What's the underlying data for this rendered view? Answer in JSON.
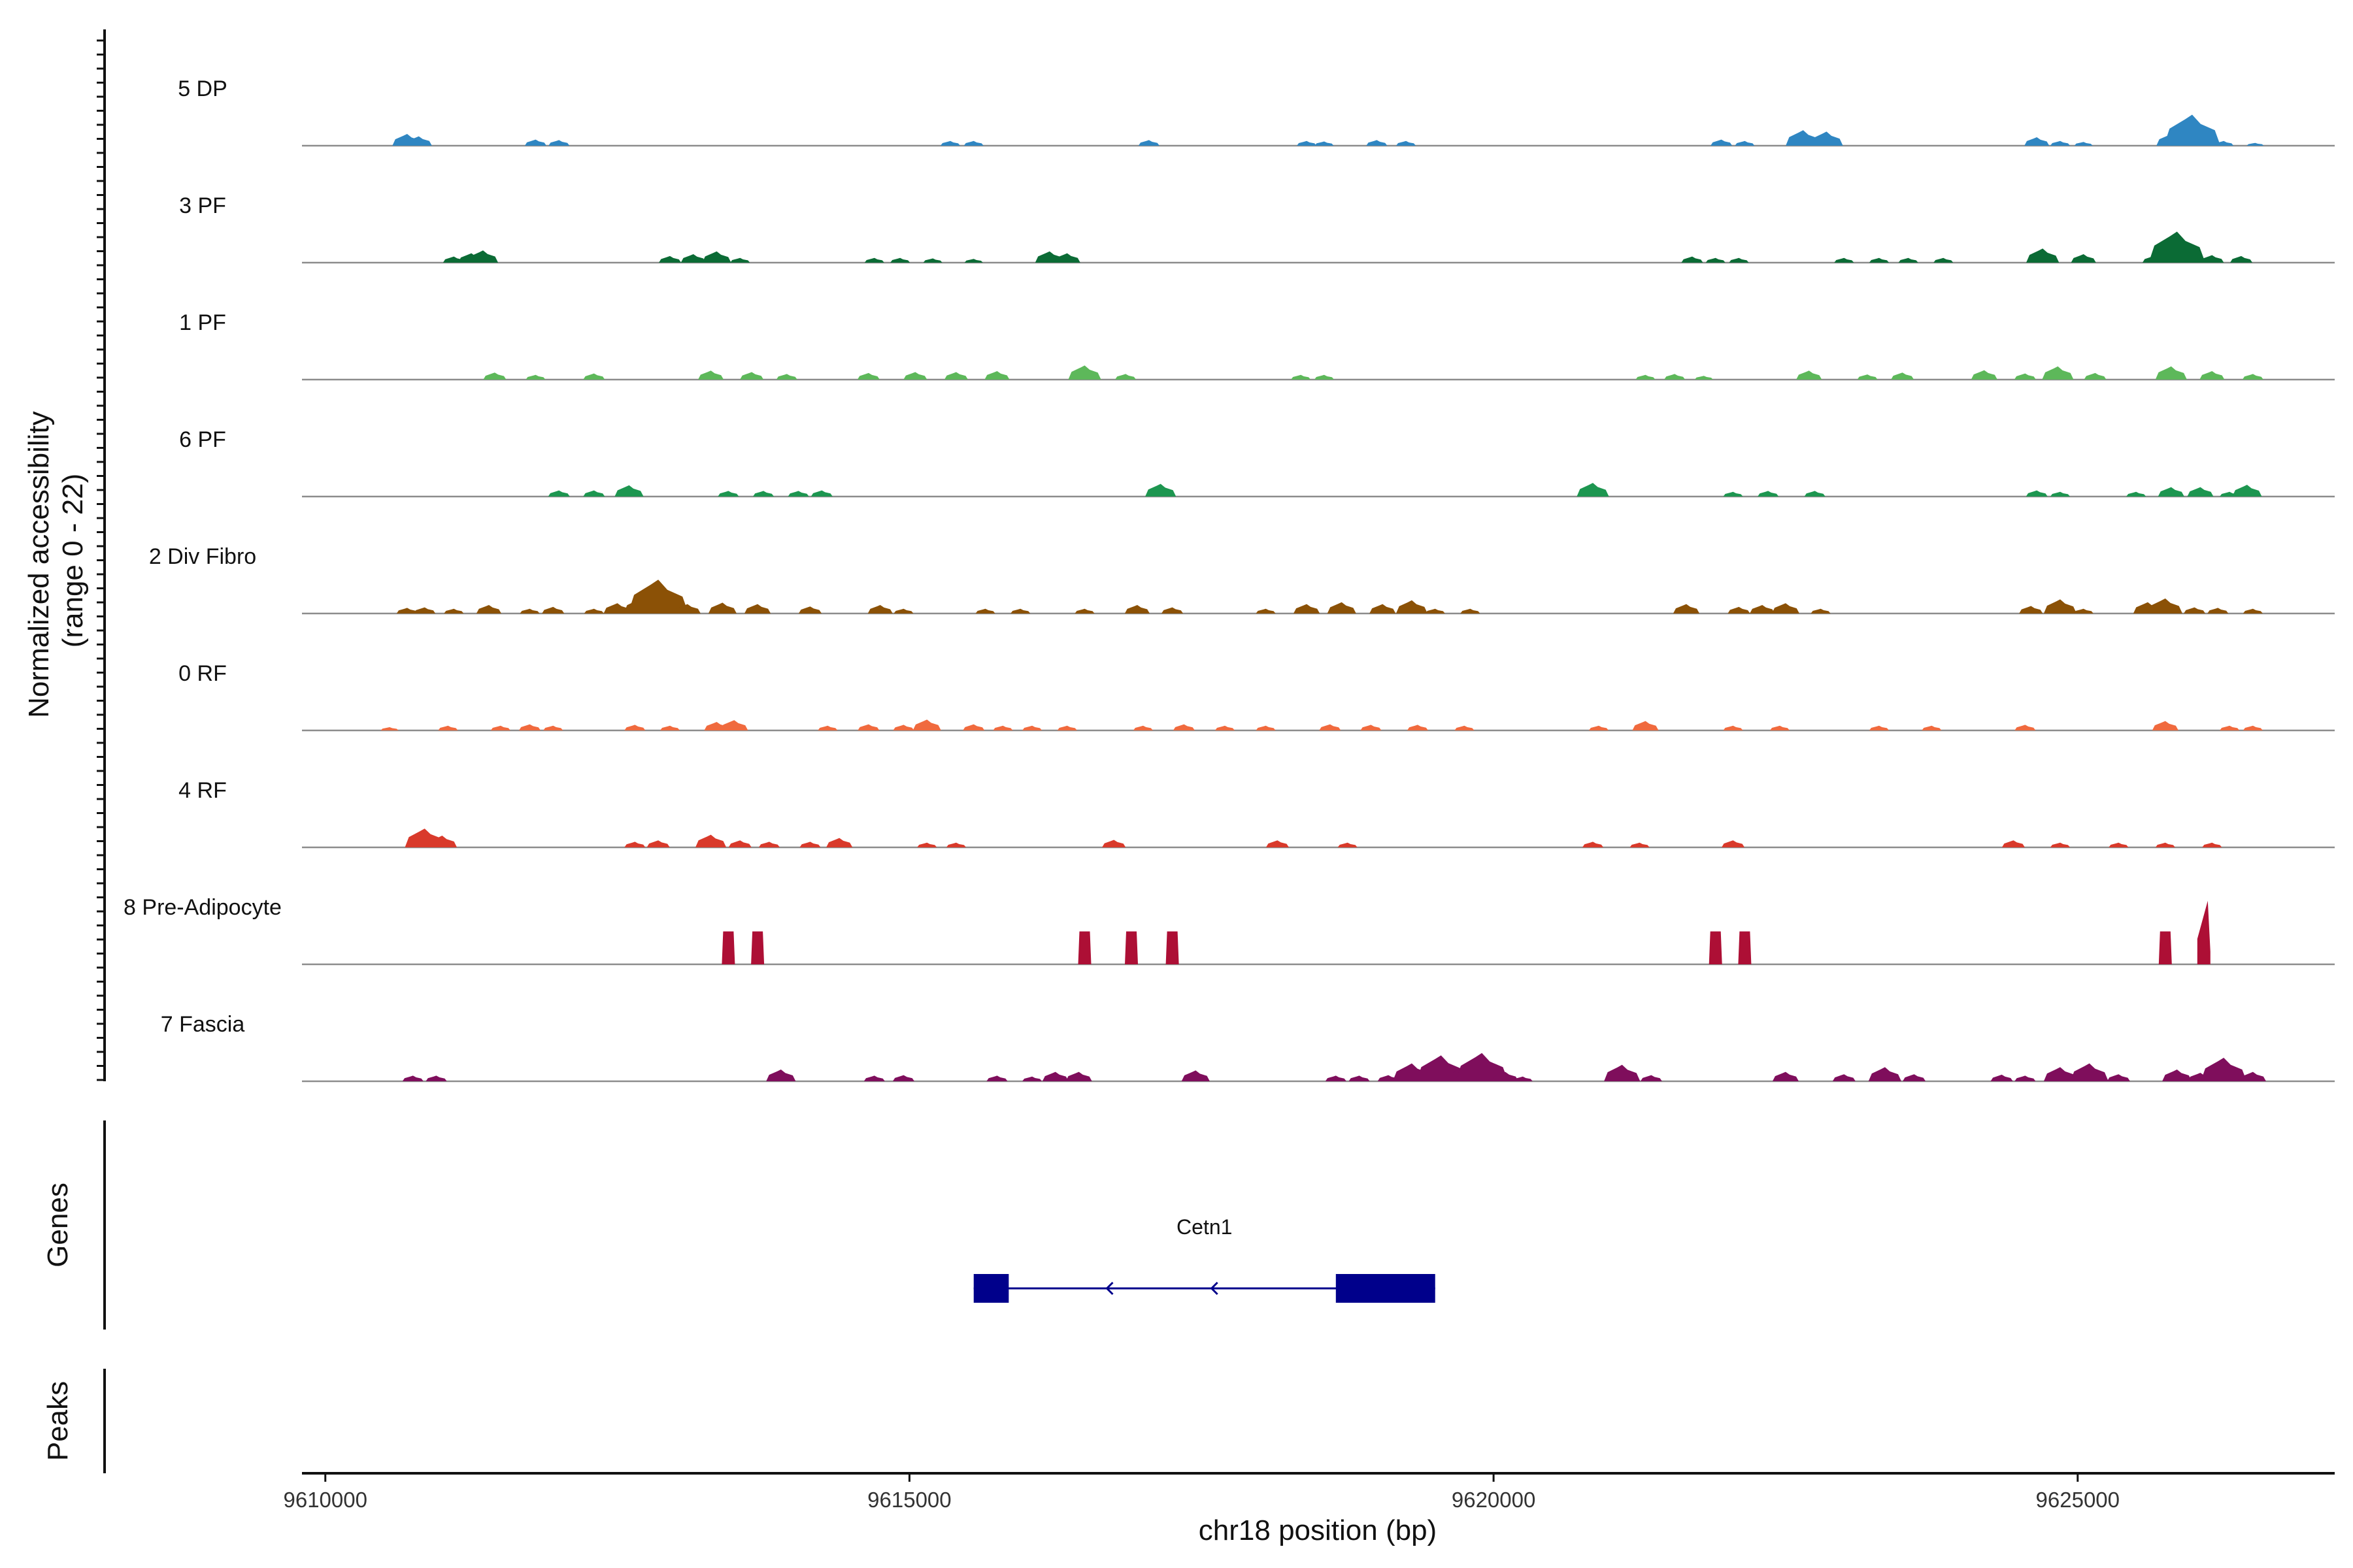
{
  "chart_data": {
    "type": "area",
    "ylabel": "Normalized accessibility\n(range 0 - 22)",
    "xlabel": "chr18 position (bp)",
    "y_range": [
      0,
      22
    ],
    "x_range": [
      9609800,
      9627200
    ],
    "x_ticks": [
      9610000,
      9615000,
      9620000,
      9625000
    ],
    "x_tick_labels": [
      "9610000",
      "9615000",
      "9620000",
      "9625000"
    ],
    "grid": false,
    "tracks": [
      {
        "name": "5 DP",
        "color": "#2f86c2",
        "peaks": [
          [
            9610700,
            2.5
          ],
          [
            9610800,
            2.0
          ],
          [
            9611800,
            1.3
          ],
          [
            9612000,
            1.2
          ],
          [
            9615350,
            1.0
          ],
          [
            9615550,
            1.0
          ],
          [
            9617050,
            1.2
          ],
          [
            9618400,
            1.0
          ],
          [
            9618550,
            0.9
          ],
          [
            9619000,
            1.2
          ],
          [
            9619250,
            1.0
          ],
          [
            9621950,
            1.3
          ],
          [
            9622150,
            1.0
          ],
          [
            9622650,
            3.3
          ],
          [
            9622850,
            3.0
          ],
          [
            9624650,
            1.8
          ],
          [
            9624850,
            1.0
          ],
          [
            9625050,
            0.8
          ],
          [
            9625800,
            2.5
          ],
          [
            9625980,
            6.6
          ],
          [
            9626250,
            1.0
          ],
          [
            9626520,
            0.6
          ]
        ]
      },
      {
        "name": "3 PF",
        "color": "#0b6b35",
        "peaks": [
          [
            9611100,
            1.3
          ],
          [
            9611250,
            2.0
          ],
          [
            9611350,
            2.6
          ],
          [
            9612950,
            1.4
          ],
          [
            9613150,
            1.8
          ],
          [
            9613350,
            2.4
          ],
          [
            9613550,
            1.0
          ],
          [
            9614700,
            1.0
          ],
          [
            9614920,
            1.0
          ],
          [
            9615200,
            0.9
          ],
          [
            9615550,
            0.8
          ],
          [
            9616200,
            2.4
          ],
          [
            9616350,
            2.0
          ],
          [
            9621700,
            1.3
          ],
          [
            9621900,
            1.0
          ],
          [
            9622100,
            1.0
          ],
          [
            9623000,
            1.0
          ],
          [
            9623300,
            1.0
          ],
          [
            9623550,
            1.0
          ],
          [
            9623850,
            1.0
          ],
          [
            9624700,
            3.0
          ],
          [
            9625050,
            1.8
          ],
          [
            9625650,
            1.4
          ],
          [
            9625850,
            6.6
          ],
          [
            9626150,
            1.6
          ],
          [
            9626400,
            1.4
          ]
        ]
      },
      {
        "name": "1 PF",
        "color": "#5db85a",
        "peaks": [
          [
            9611450,
            1.5
          ],
          [
            9611800,
            1.0
          ],
          [
            9612300,
            1.3
          ],
          [
            9613300,
            1.9
          ],
          [
            9613650,
            1.6
          ],
          [
            9613950,
            1.2
          ],
          [
            9614650,
            1.4
          ],
          [
            9615050,
            1.6
          ],
          [
            9615400,
            1.6
          ],
          [
            9615750,
            1.8
          ],
          [
            9616500,
            3.0
          ],
          [
            9616850,
            1.2
          ],
          [
            9618350,
            1.0
          ],
          [
            9618550,
            1.0
          ],
          [
            9621300,
            1.0
          ],
          [
            9621550,
            1.2
          ],
          [
            9621800,
            0.8
          ],
          [
            9622700,
            1.9
          ],
          [
            9623200,
            1.1
          ],
          [
            9623500,
            1.5
          ],
          [
            9624200,
            2.0
          ],
          [
            9624550,
            1.3
          ],
          [
            9624830,
            2.8
          ],
          [
            9625150,
            1.4
          ],
          [
            9625800,
            2.8
          ],
          [
            9626150,
            1.8
          ],
          [
            9626500,
            1.2
          ]
        ]
      },
      {
        "name": "6 PF",
        "color": "#1d9650",
        "peaks": [
          [
            9612000,
            1.3
          ],
          [
            9612300,
            1.3
          ],
          [
            9612600,
            2.4
          ],
          [
            9613450,
            1.2
          ],
          [
            9613750,
            1.2
          ],
          [
            9614050,
            1.2
          ],
          [
            9614250,
            1.3
          ],
          [
            9617150,
            2.7
          ],
          [
            9620850,
            2.9
          ],
          [
            9622050,
            1.0
          ],
          [
            9622350,
            1.2
          ],
          [
            9622750,
            1.2
          ],
          [
            9624650,
            1.3
          ],
          [
            9624850,
            1.0
          ],
          [
            9625500,
            1.0
          ],
          [
            9625800,
            2.0
          ],
          [
            9626050,
            2.0
          ],
          [
            9626300,
            1.0
          ],
          [
            9626450,
            2.5
          ]
        ]
      },
      {
        "name": "2 Div Fibro",
        "color": "#8b5106",
        "peaks": [
          [
            9610700,
            1.2
          ],
          [
            9610850,
            1.3
          ],
          [
            9611100,
            1.0
          ],
          [
            9611400,
            1.8
          ],
          [
            9611750,
            1.0
          ],
          [
            9611950,
            1.4
          ],
          [
            9612300,
            1.0
          ],
          [
            9612500,
            2.2
          ],
          [
            9612700,
            3.2
          ],
          [
            9612850,
            7.2
          ],
          [
            9613100,
            2.0
          ],
          [
            9613400,
            2.3
          ],
          [
            9613700,
            2.0
          ],
          [
            9614150,
            1.5
          ],
          [
            9614750,
            1.8
          ],
          [
            9614950,
            1.0
          ],
          [
            9615650,
            1.0
          ],
          [
            9615950,
            1.0
          ],
          [
            9616500,
            1.0
          ],
          [
            9616950,
            1.8
          ],
          [
            9617250,
            1.3
          ],
          [
            9618050,
            1.0
          ],
          [
            9618400,
            2.0
          ],
          [
            9618700,
            2.4
          ],
          [
            9619050,
            2.0
          ],
          [
            9619300,
            2.8
          ],
          [
            9619500,
            1.0
          ],
          [
            9619800,
            1.0
          ],
          [
            9621650,
            2.0
          ],
          [
            9622100,
            1.4
          ],
          [
            9622300,
            1.8
          ],
          [
            9622500,
            2.2
          ],
          [
            9622800,
            1.0
          ],
          [
            9624600,
            1.6
          ],
          [
            9624850,
            3.0
          ],
          [
            9625050,
            1.0
          ],
          [
            9625600,
            2.4
          ],
          [
            9625750,
            3.2
          ],
          [
            9626000,
            1.3
          ],
          [
            9626200,
            1.2
          ],
          [
            9626500,
            1.0
          ]
        ]
      },
      {
        "name": "0 RF",
        "color": "#f06a3e",
        "peaks": [
          [
            9610550,
            0.7
          ],
          [
            9611050,
            1.0
          ],
          [
            9611500,
            1.0
          ],
          [
            9611750,
            1.3
          ],
          [
            9611950,
            1.0
          ],
          [
            9612650,
            1.2
          ],
          [
            9612950,
            1.0
          ],
          [
            9613350,
            1.8
          ],
          [
            9613500,
            2.2
          ],
          [
            9614300,
            1.0
          ],
          [
            9614650,
            1.3
          ],
          [
            9614950,
            1.2
          ],
          [
            9615150,
            2.3
          ],
          [
            9615550,
            1.3
          ],
          [
            9615800,
            1.0
          ],
          [
            9616050,
            1.0
          ],
          [
            9616350,
            1.0
          ],
          [
            9617000,
            1.0
          ],
          [
            9617350,
            1.3
          ],
          [
            9617700,
            1.0
          ],
          [
            9618050,
            1.0
          ],
          [
            9618600,
            1.3
          ],
          [
            9618950,
            1.2
          ],
          [
            9619350,
            1.2
          ],
          [
            9619750,
            1.0
          ],
          [
            9620900,
            1.0
          ],
          [
            9621300,
            2.0
          ],
          [
            9622050,
            1.0
          ],
          [
            9622450,
            1.0
          ],
          [
            9623300,
            1.0
          ],
          [
            9623750,
            1.0
          ],
          [
            9624550,
            1.2
          ],
          [
            9625750,
            2.0
          ],
          [
            9626300,
            1.0
          ],
          [
            9626500,
            1.0
          ]
        ]
      },
      {
        "name": "4 RF",
        "color": "#d93a2b",
        "peaks": [
          [
            9610850,
            4.0
          ],
          [
            9611000,
            2.5
          ],
          [
            9612650,
            1.2
          ],
          [
            9612850,
            1.5
          ],
          [
            9613300,
            2.7
          ],
          [
            9613550,
            1.5
          ],
          [
            9613800,
            1.2
          ],
          [
            9614150,
            1.2
          ],
          [
            9614400,
            2.0
          ],
          [
            9615150,
            1.0
          ],
          [
            9615400,
            1.0
          ],
          [
            9616750,
            1.6
          ],
          [
            9618150,
            1.5
          ],
          [
            9618750,
            1.0
          ],
          [
            9620850,
            1.2
          ],
          [
            9621250,
            1.0
          ],
          [
            9622050,
            1.5
          ],
          [
            9624450,
            1.5
          ],
          [
            9624850,
            1.0
          ],
          [
            9625350,
            1.0
          ],
          [
            9625750,
            1.0
          ],
          [
            9626150,
            1.0
          ]
        ]
      },
      {
        "name": "8 Pre-Adipocyte",
        "color": "#ad0f35",
        "peaks": [
          [
            9613450,
            7.0
          ],
          [
            9613700,
            7.0
          ],
          [
            9616500,
            7.0
          ],
          [
            9616900,
            7.0
          ],
          [
            9617250,
            7.0
          ],
          [
            9621900,
            7.0
          ],
          [
            9622150,
            7.0
          ],
          [
            9625750,
            7.0
          ],
          [
            9626080,
            13.5
          ]
        ]
      },
      {
        "name": "7 Fascia",
        "color": "#7f0e5c",
        "peaks": [
          [
            9610750,
            1.2
          ],
          [
            9610950,
            1.2
          ],
          [
            9613900,
            2.5
          ],
          [
            9614700,
            1.2
          ],
          [
            9614950,
            1.3
          ],
          [
            9615750,
            1.2
          ],
          [
            9616050,
            1.0
          ],
          [
            9616250,
            2.0
          ],
          [
            9616450,
            2.0
          ],
          [
            9617450,
            2.3
          ],
          [
            9618650,
            1.2
          ],
          [
            9618850,
            1.2
          ],
          [
            9619100,
            1.3
          ],
          [
            9619300,
            3.8
          ],
          [
            9619550,
            5.5
          ],
          [
            9619750,
            3.0
          ],
          [
            9619900,
            6.0
          ],
          [
            9620100,
            2.0
          ],
          [
            9620250,
            1.0
          ],
          [
            9621100,
            3.5
          ],
          [
            9621350,
            1.3
          ],
          [
            9622500,
            2.0
          ],
          [
            9623000,
            1.5
          ],
          [
            9623350,
            3.0
          ],
          [
            9623600,
            1.5
          ],
          [
            9624350,
            1.4
          ],
          [
            9624550,
            1.2
          ],
          [
            9624850,
            3.0
          ],
          [
            9625100,
            3.8
          ],
          [
            9625350,
            1.5
          ],
          [
            9625850,
            2.5
          ],
          [
            9626050,
            1.8
          ],
          [
            9626250,
            5.0
          ],
          [
            9626500,
            2.0
          ]
        ]
      }
    ],
    "genes": [
      {
        "name": "Cetn1",
        "color": "#00008b",
        "strand": "-",
        "start": 9615550,
        "end": 9619500,
        "exons": [
          [
            9615550,
            9615850
          ],
          [
            9618650,
            9619500
          ]
        ]
      }
    ],
    "panel_labels": {
      "genes": "Genes",
      "peaks": "Peaks"
    }
  }
}
